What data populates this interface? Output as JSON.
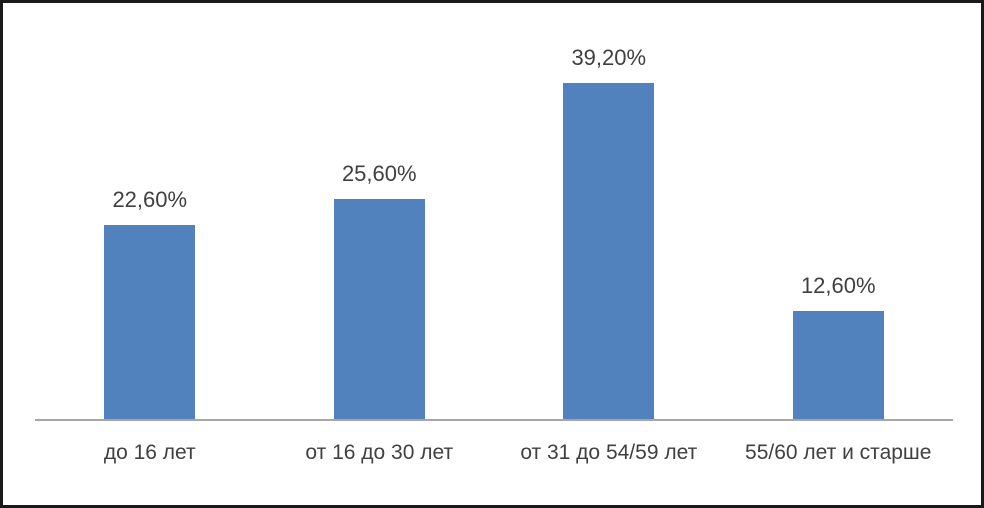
{
  "chart_data": {
    "type": "bar",
    "title": "",
    "categories": [
      "до 16 лет",
      "от 16 до 30 лет",
      "от 31 до 54/59 лет",
      "55/60 лет и старше"
    ],
    "values": [
      22.6,
      25.6,
      39.2,
      12.6
    ],
    "value_labels": [
      "22,60%",
      "25,60%",
      "39,20%",
      "12,60%"
    ],
    "xlabel": "",
    "ylabel": "",
    "ylim": [
      0,
      45
    ],
    "grid": false,
    "legend": false,
    "y_axis_visible": false,
    "data_labels_position": "above-bar",
    "colors": {
      "bar": "#5182be",
      "axis_line": "#a6a6a6",
      "label_text": "#404040",
      "frame_border": "#1a1a1a",
      "background": "#ffffff"
    }
  }
}
